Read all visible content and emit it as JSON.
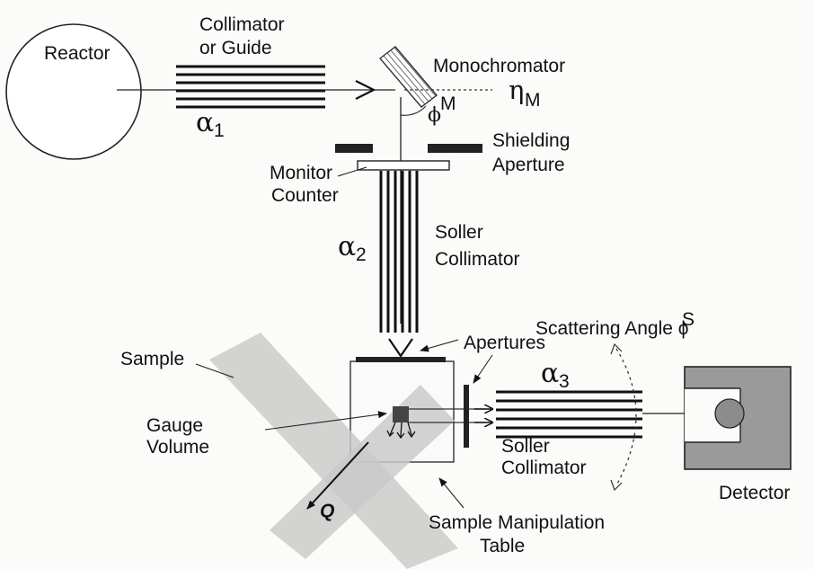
{
  "labels": {
    "reactor": "Reactor",
    "collimator_line1": "Collimator",
    "collimator_line2": "or Guide",
    "alpha1_symbol": "α",
    "alpha1_sub": "1",
    "monochromator": "Monochromator",
    "eta_symbol": "η",
    "eta_sub": "M",
    "phiM_symbol": "ϕ",
    "phiM_sup": "M",
    "shielding_line1": "Shielding",
    "shielding_line2": "Aperture",
    "monitor_line1": "Monitor",
    "monitor_line2": "Counter",
    "alpha2_symbol": "α",
    "alpha2_sub": "2",
    "soller_upper_line1": "Soller",
    "soller_upper_line2": "Collimator",
    "scattering_angle": "Scattering Angle ϕ",
    "scattering_sup": "S",
    "apertures": "Apertures",
    "sample": "Sample",
    "alpha3_symbol": "α",
    "alpha3_sub": "3",
    "gauge_line1": "Gauge",
    "gauge_line2": "Volume",
    "soller_lower_line1": "Soller",
    "soller_lower_line2": "Collimator",
    "q_vector": "Q",
    "detector": "Detector",
    "table_line1": "Sample Manipulation",
    "table_line2": "Table"
  }
}
